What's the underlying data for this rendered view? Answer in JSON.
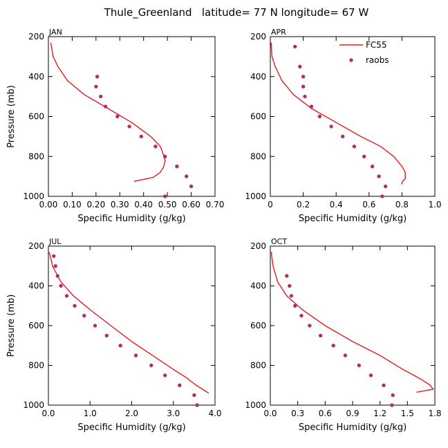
{
  "title": "Thule_Greenland   latitude= 77 N longitude= 67 W",
  "colors": {
    "model": "#e41a1c",
    "obs": "#b03060"
  },
  "legend": {
    "model_label": "FC55",
    "obs_label": "raobs"
  },
  "chart_data": [
    {
      "type": "line",
      "panel": "JAN",
      "title": "JAN",
      "xlabel": "Specific Humidity (g/kg)",
      "ylabel": "Pressure (mb)",
      "xlim": [
        0,
        0.7
      ],
      "ylim": [
        1000,
        200
      ],
      "xticks": [
        0,
        0.1,
        0.2,
        0.3,
        0.4,
        0.5,
        0.6,
        0.7
      ],
      "xtick_labels": [
        "0.00",
        "0.10",
        "0.20",
        "0.30",
        "0.40",
        "0.50",
        "0.60",
        "0.70"
      ],
      "yticks": [
        200,
        400,
        600,
        800,
        1000
      ],
      "ytick_labels": [
        "200",
        "400",
        "600",
        "800",
        "1000"
      ],
      "series": [
        {
          "name": "FC55",
          "style": "line",
          "x": [
            0.01,
            0.02,
            0.04,
            0.08,
            0.15,
            0.25,
            0.35,
            0.43,
            0.47,
            0.48,
            0.49,
            0.485,
            0.47,
            0.44,
            0.38,
            0.36
          ],
          "y": [
            230,
            300,
            350,
            420,
            490,
            560,
            630,
            700,
            750,
            780,
            820,
            850,
            880,
            905,
            920,
            925
          ]
        },
        {
          "name": "raobs",
          "style": "markers",
          "x": [
            0.205,
            0.2,
            0.22,
            0.24,
            0.29,
            0.34,
            0.39,
            0.45,
            0.49,
            0.54,
            0.58,
            0.6,
            0.49
          ],
          "y": [
            400,
            450,
            500,
            550,
            600,
            650,
            700,
            750,
            800,
            850,
            900,
            950,
            1000
          ]
        }
      ]
    },
    {
      "type": "line",
      "panel": "APR",
      "title": "APR",
      "xlabel": "Specific Humidity (g/kg)",
      "ylabel": "Pressure (mb)",
      "xlim": [
        0,
        1.0
      ],
      "ylim": [
        1000,
        200
      ],
      "xticks": [
        0,
        0.2,
        0.4,
        0.6,
        0.8,
        1.0
      ],
      "xtick_labels": [
        "0",
        "0.2",
        "0.4",
        "0.6",
        "0.8",
        "1.0"
      ],
      "yticks": [
        200,
        400,
        600,
        800,
        1000
      ],
      "ytick_labels": [
        "200",
        "400",
        "600",
        "800",
        "1000"
      ],
      "series": [
        {
          "name": "FC55",
          "style": "line",
          "x": [
            0.005,
            0.01,
            0.03,
            0.07,
            0.14,
            0.25,
            0.4,
            0.55,
            0.67,
            0.75,
            0.8,
            0.82,
            0.82,
            0.8,
            0.8
          ],
          "y": [
            230,
            300,
            350,
            420,
            490,
            560,
            630,
            700,
            750,
            800,
            850,
            880,
            910,
            930,
            940
          ]
        },
        {
          "name": "raobs",
          "style": "markers",
          "x": [
            0.15,
            0.18,
            0.2,
            0.2,
            0.21,
            0.25,
            0.3,
            0.37,
            0.44,
            0.51,
            0.57,
            0.62,
            0.66,
            0.7,
            0.68
          ],
          "y": [
            250,
            350,
            400,
            450,
            500,
            550,
            600,
            650,
            700,
            750,
            800,
            850,
            900,
            950,
            1000
          ]
        }
      ]
    },
    {
      "type": "line",
      "panel": "JUL",
      "title": "JUL",
      "xlabel": "Specific Humidity (g/kg)",
      "ylabel": "Pressure (mb)",
      "xlim": [
        0,
        4.0
      ],
      "ylim": [
        1000,
        200
      ],
      "xticks": [
        0,
        1.0,
        2.0,
        3.0,
        4.0
      ],
      "xtick_labels": [
        "0.0",
        "1.0",
        "2.0",
        "3.0",
        "4.0"
      ],
      "yticks": [
        200,
        400,
        600,
        800,
        1000
      ],
      "ytick_labels": [
        "200",
        "400",
        "600",
        "800",
        "1000"
      ],
      "series": [
        {
          "name": "FC55",
          "style": "line",
          "x": [
            0.02,
            0.1,
            0.3,
            0.6,
            1.0,
            1.5,
            2.0,
            2.5,
            3.0,
            3.3,
            3.55,
            3.7,
            3.85
          ],
          "y": [
            230,
            300,
            380,
            450,
            520,
            600,
            680,
            750,
            820,
            860,
            900,
            920,
            940
          ]
        },
        {
          "name": "raobs",
          "style": "markers",
          "x": [
            0.13,
            0.17,
            0.22,
            0.3,
            0.44,
            0.63,
            0.86,
            1.12,
            1.4,
            1.73,
            2.1,
            2.47,
            2.8,
            3.15,
            3.5,
            3.57
          ],
          "y": [
            250,
            300,
            350,
            400,
            450,
            500,
            550,
            600,
            650,
            700,
            750,
            800,
            850,
            900,
            950,
            1000
          ]
        }
      ]
    },
    {
      "type": "line",
      "panel": "OCT",
      "title": "OCT",
      "xlabel": "Specific Humidity (g/kg)",
      "ylabel": "Pressure (mb)",
      "xlim": [
        0,
        1.8
      ],
      "ylim": [
        1000,
        200
      ],
      "xticks": [
        0,
        0.3,
        0.6,
        0.9,
        1.2,
        1.5,
        1.8
      ],
      "xtick_labels": [
        "0.0",
        "0.3",
        "0.6",
        "0.9",
        "1.2",
        "1.5",
        "1.8"
      ],
      "yticks": [
        200,
        400,
        600,
        800,
        1000
      ],
      "ytick_labels": [
        "200",
        "400",
        "600",
        "800",
        "1000"
      ],
      "series": [
        {
          "name": "FC55",
          "style": "line",
          "x": [
            0.01,
            0.03,
            0.08,
            0.18,
            0.35,
            0.6,
            0.9,
            1.2,
            1.45,
            1.65,
            1.75,
            1.78,
            1.6
          ],
          "y": [
            230,
            300,
            380,
            450,
            520,
            600,
            680,
            750,
            820,
            870,
            900,
            920,
            935
          ]
        },
        {
          "name": "raobs",
          "style": "markers",
          "x": [
            0.18,
            0.21,
            0.23,
            0.27,
            0.34,
            0.43,
            0.55,
            0.69,
            0.82,
            0.97,
            1.1,
            1.24,
            1.34,
            1.33
          ],
          "y": [
            350,
            400,
            450,
            500,
            550,
            600,
            650,
            700,
            750,
            800,
            850,
            900,
            950,
            1000
          ]
        }
      ]
    }
  ]
}
